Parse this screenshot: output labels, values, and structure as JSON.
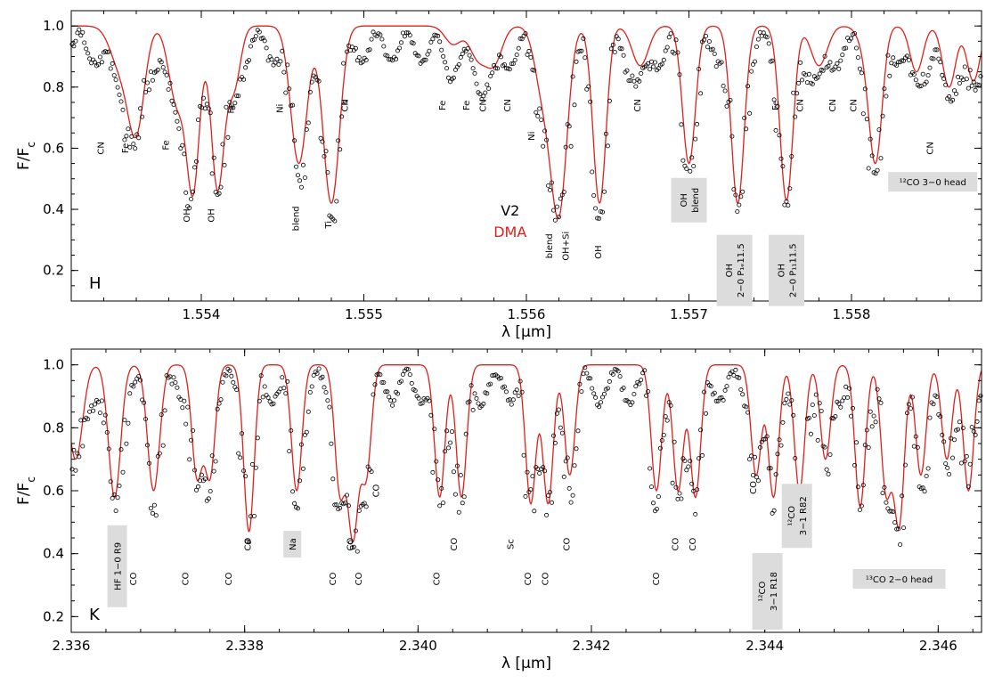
{
  "chart_data": [
    {
      "type": "line",
      "panel_label": "H",
      "xlabel_symbol": "λ",
      "xlabel_unit": "[μm]",
      "ylabel": "F/F",
      "ylabel_sub": "c",
      "xlim": [
        1.5532,
        1.5588
      ],
      "ylim": [
        0.1,
        1.05
      ],
      "x_ticks": [
        "1.554",
        "1.555",
        "1.556",
        "1.557",
        "1.558"
      ],
      "x_tick_values": [
        1.554,
        1.555,
        1.556,
        1.557,
        1.558
      ],
      "y_ticks": [
        "0.2",
        "0.4",
        "0.6",
        "0.8",
        "1.0"
      ],
      "y_tick_values": [
        0.2,
        0.4,
        0.6,
        0.8,
        1.0
      ],
      "legend": [
        {
          "label": "V2",
          "style": "open-circles",
          "color": "#000000"
        },
        {
          "label": "DMA",
          "style": "line",
          "color": "#e0201b"
        }
      ],
      "lines": [
        {
          "x": 1.5535,
          "depth": 0.13,
          "w": 6e-05
        },
        {
          "x": 1.5536,
          "depth": 0.33,
          "w": 5e-05
        },
        {
          "x": 1.55385,
          "depth": 0.25,
          "w": 5e-05
        },
        {
          "x": 1.55395,
          "depth": 0.52,
          "w": 4e-05
        },
        {
          "x": 1.5541,
          "depth": 0.53,
          "w": 4e-05
        },
        {
          "x": 1.5542,
          "depth": 0.2,
          "w": 4e-05
        },
        {
          "x": 1.5546,
          "depth": 0.45,
          "w": 5e-05
        },
        {
          "x": 1.5548,
          "depth": 0.58,
          "w": 5e-05
        },
        {
          "x": 1.55555,
          "depth": 0.06,
          "w": 5e-05
        },
        {
          "x": 1.5557,
          "depth": 0.1,
          "w": 5e-05
        },
        {
          "x": 1.5558,
          "depth": 0.12,
          "w": 5e-05
        },
        {
          "x": 1.5561,
          "depth": 0.2,
          "w": 5e-05
        },
        {
          "x": 1.5562,
          "depth": 0.6,
          "w": 5e-05
        },
        {
          "x": 1.55645,
          "depth": 0.58,
          "w": 4e-05
        },
        {
          "x": 1.5567,
          "depth": 0.13,
          "w": 5e-05
        },
        {
          "x": 1.557,
          "depth": 0.45,
          "w": 4e-05
        },
        {
          "x": 1.5573,
          "depth": 0.58,
          "w": 4e-05
        },
        {
          "x": 1.5576,
          "depth": 0.57,
          "w": 4e-05
        },
        {
          "x": 1.5578,
          "depth": 0.13,
          "w": 5e-05
        },
        {
          "x": 1.5581,
          "depth": 0.08,
          "w": 5e-05
        },
        {
          "x": 1.55815,
          "depth": 0.4,
          "w": 4e-05
        },
        {
          "x": 1.5584,
          "depth": 0.15,
          "w": 4e-05
        },
        {
          "x": 1.5586,
          "depth": 0.2,
          "w": 4e-05
        },
        {
          "x": 1.55875,
          "depth": 0.18,
          "w": 4e-05
        }
      ],
      "annotations": [
        {
          "text": "CN",
          "x": 1.5534,
          "y": 0.6,
          "rot": -90
        },
        {
          "text": "Fe",
          "x": 1.55355,
          "y": 0.6,
          "rot": -90
        },
        {
          "text": "Fe",
          "x": 1.5538,
          "y": 0.61,
          "rot": -90
        },
        {
          "text": "OH",
          "x": 1.55393,
          "y": 0.38,
          "rot": -90
        },
        {
          "text": "OH",
          "x": 1.55408,
          "y": 0.38,
          "rot": -90
        },
        {
          "text": "Fe",
          "x": 1.5542,
          "y": 0.73,
          "rot": -90
        },
        {
          "text": "Ni",
          "x": 1.5545,
          "y": 0.73,
          "rot": -90
        },
        {
          "text": "blend",
          "x": 1.5546,
          "y": 0.37,
          "rot": -90
        },
        {
          "text": "Ti",
          "x": 1.5548,
          "y": 0.35,
          "rot": -90
        },
        {
          "text": "CN",
          "x": 1.5549,
          "y": 0.74,
          "rot": -90
        },
        {
          "text": "Fe",
          "x": 1.5555,
          "y": 0.74,
          "rot": -90
        },
        {
          "text": "Fe",
          "x": 1.55565,
          "y": 0.74,
          "rot": -90
        },
        {
          "text": "CN",
          "x": 1.55575,
          "y": 0.74,
          "rot": -90
        },
        {
          "text": "CN",
          "x": 1.5559,
          "y": 0.74,
          "rot": -90
        },
        {
          "text": "Ni",
          "x": 1.55605,
          "y": 0.64,
          "rot": -90
        },
        {
          "text": "blend",
          "x": 1.55616,
          "y": 0.28,
          "rot": -90
        },
        {
          "text": "OH+Si",
          "x": 1.55626,
          "y": 0.28,
          "rot": -90
        },
        {
          "text": "OH",
          "x": 1.55646,
          "y": 0.26,
          "rot": -90
        },
        {
          "text": "CN",
          "x": 1.5567,
          "y": 0.74,
          "rot": -90
        },
        {
          "text": "CN",
          "x": 1.5577,
          "y": 0.74,
          "rot": -90
        },
        {
          "text": "CN",
          "x": 1.5579,
          "y": 0.74,
          "rot": -90
        },
        {
          "text": "CN",
          "x": 1.55803,
          "y": 0.74,
          "rot": -90
        },
        {
          "text": "Fe",
          "x": 1.55755,
          "y": 0.74,
          "rot": -90
        },
        {
          "text": "CN",
          "x": 1.5585,
          "y": 0.6,
          "rot": -90
        }
      ],
      "boxed": [
        {
          "lines": [
            "OH",
            "blend"
          ],
          "x": 1.557,
          "y": 0.43,
          "rot": -90,
          "w": 40,
          "h": 50
        },
        {
          "lines": [
            "OH",
            "2−0 P₁ₑ11.5"
          ],
          "x": 1.55728,
          "y": 0.2,
          "rot": -90,
          "w": 40,
          "h": 80
        },
        {
          "lines": [
            "OH",
            "2−0 P₁₁11.5"
          ],
          "x": 1.5576,
          "y": 0.2,
          "rot": -90,
          "w": 40,
          "h": 80
        },
        {
          "lines": [
            "¹²CO 3−0 head"
          ],
          "x": 1.5585,
          "y": 0.49,
          "rot": 0,
          "w": 100,
          "h": 22
        }
      ],
      "legend_text": {
        "v2": "V2",
        "dma": "DMA"
      }
    },
    {
      "type": "line",
      "panel_label": "K",
      "xlabel_symbol": "λ",
      "xlabel_unit": "[μm]",
      "ylabel": "F/F",
      "ylabel_sub": "c",
      "xlim": [
        2.336,
        2.3465
      ],
      "ylim": [
        0.15,
        1.05
      ],
      "x_ticks": [
        "2.336",
        "2.338",
        "2.340",
        "2.342",
        "2.344",
        "2.346"
      ],
      "x_tick_values": [
        2.336,
        2.338,
        2.34,
        2.342,
        2.344,
        2.346
      ],
      "y_ticks": [
        "0.2",
        "0.4",
        "0.6",
        "0.8",
        "1.0"
      ],
      "y_tick_values": [
        0.2,
        0.4,
        0.6,
        0.8,
        1.0
      ],
      "lines": [
        {
          "x": 2.33605,
          "depth": 0.3,
          "w": 8e-05
        },
        {
          "x": 2.3365,
          "depth": 0.42,
          "w": 7e-05
        },
        {
          "x": 2.33695,
          "depth": 0.4,
          "w": 7e-05
        },
        {
          "x": 2.33745,
          "depth": 0.35,
          "w": 6e-05
        },
        {
          "x": 2.3376,
          "depth": 0.35,
          "w": 6e-05
        },
        {
          "x": 2.33805,
          "depth": 0.53,
          "w": 6e-05
        },
        {
          "x": 2.3386,
          "depth": 0.4,
          "w": 6e-05
        },
        {
          "x": 2.3391,
          "depth": 0.4,
          "w": 6e-05
        },
        {
          "x": 2.33925,
          "depth": 0.53,
          "w": 6e-05
        },
        {
          "x": 2.3394,
          "depth": 0.35,
          "w": 6e-05
        },
        {
          "x": 2.34025,
          "depth": 0.42,
          "w": 6e-05
        },
        {
          "x": 2.3405,
          "depth": 0.42,
          "w": 6e-05
        },
        {
          "x": 2.3413,
          "depth": 0.44,
          "w": 6e-05
        },
        {
          "x": 2.3415,
          "depth": 0.44,
          "w": 6e-05
        },
        {
          "x": 2.34175,
          "depth": 0.35,
          "w": 6e-05
        },
        {
          "x": 2.34275,
          "depth": 0.4,
          "w": 6e-05
        },
        {
          "x": 2.343,
          "depth": 0.4,
          "w": 6e-05
        },
        {
          "x": 2.3432,
          "depth": 0.42,
          "w": 6e-05
        },
        {
          "x": 2.3439,
          "depth": 0.35,
          "w": 6e-05
        },
        {
          "x": 2.3441,
          "depth": 0.42,
          "w": 6e-05
        },
        {
          "x": 2.3444,
          "depth": 0.4,
          "w": 6e-05
        },
        {
          "x": 2.3447,
          "depth": 0.3,
          "w": 6e-05
        },
        {
          "x": 2.3451,
          "depth": 0.45,
          "w": 6e-05
        },
        {
          "x": 2.3454,
          "depth": 0.4,
          "w": 6e-05
        },
        {
          "x": 2.34555,
          "depth": 0.5,
          "w": 6e-05
        },
        {
          "x": 2.3458,
          "depth": 0.35,
          "w": 6e-05
        },
        {
          "x": 2.3461,
          "depth": 0.3,
          "w": 6e-05
        },
        {
          "x": 2.34635,
          "depth": 0.4,
          "w": 6e-05
        }
      ],
      "annotations": [
        {
          "text": "CO",
          "x": 2.33675,
          "y": 0.32,
          "rot": -90
        },
        {
          "text": "CO",
          "x": 2.33735,
          "y": 0.32,
          "rot": -90
        },
        {
          "text": "CO",
          "x": 2.33785,
          "y": 0.32,
          "rot": -90
        },
        {
          "text": "CO",
          "x": 2.33807,
          "y": 0.43,
          "rot": -90
        },
        {
          "text": "CO",
          "x": 2.33905,
          "y": 0.32,
          "rot": -90
        },
        {
          "text": "CO",
          "x": 2.33925,
          "y": 0.43,
          "rot": -90
        },
        {
          "text": "CO",
          "x": 2.33935,
          "y": 0.32,
          "rot": -90
        },
        {
          "text": "CO",
          "x": 2.33955,
          "y": 0.6,
          "rot": -90
        },
        {
          "text": "CO",
          "x": 2.34025,
          "y": 0.32,
          "rot": -90
        },
        {
          "text": "CO",
          "x": 2.34045,
          "y": 0.43,
          "rot": -90
        },
        {
          "text": "Sc",
          "x": 2.3411,
          "y": 0.43,
          "rot": -90
        },
        {
          "text": "CO",
          "x": 2.3413,
          "y": 0.32,
          "rot": -90
        },
        {
          "text": "CO",
          "x": 2.3415,
          "y": 0.32,
          "rot": -90
        },
        {
          "text": "CO",
          "x": 2.34175,
          "y": 0.43,
          "rot": -90
        },
        {
          "text": "CO",
          "x": 2.34278,
          "y": 0.32,
          "rot": -90
        },
        {
          "text": "CO",
          "x": 2.343,
          "y": 0.43,
          "rot": -90
        },
        {
          "text": "CO",
          "x": 2.3432,
          "y": 0.43,
          "rot": -90
        },
        {
          "text": "CO",
          "x": 2.3439,
          "y": 0.61,
          "rot": -90
        }
      ],
      "boxed": [
        {
          "lines": [
            "HF 1−0 R9"
          ],
          "x": 2.33653,
          "y": 0.36,
          "rot": -90,
          "w": 22,
          "h": 92
        },
        {
          "lines": [
            "Na"
          ],
          "x": 2.33855,
          "y": 0.43,
          "rot": -90,
          "w": 20,
          "h": 30
        },
        {
          "lines": [
            "¹²CO",
            "3−1  R18"
          ],
          "x": 2.34403,
          "y": 0.28,
          "rot": -90,
          "w": 34,
          "h": 86
        },
        {
          "lines": [
            "¹²CO",
            "3−1  R82"
          ],
          "x": 2.34437,
          "y": 0.52,
          "rot": -90,
          "w": 34,
          "h": 72
        },
        {
          "lines": [
            "¹³CO 2−0 head"
          ],
          "x": 2.34555,
          "y": 0.32,
          "rot": 0,
          "w": 104,
          "h": 22
        }
      ]
    }
  ],
  "colors": {
    "model": "#e0201b",
    "observed": "#000000",
    "box": "#dcdcdc"
  }
}
